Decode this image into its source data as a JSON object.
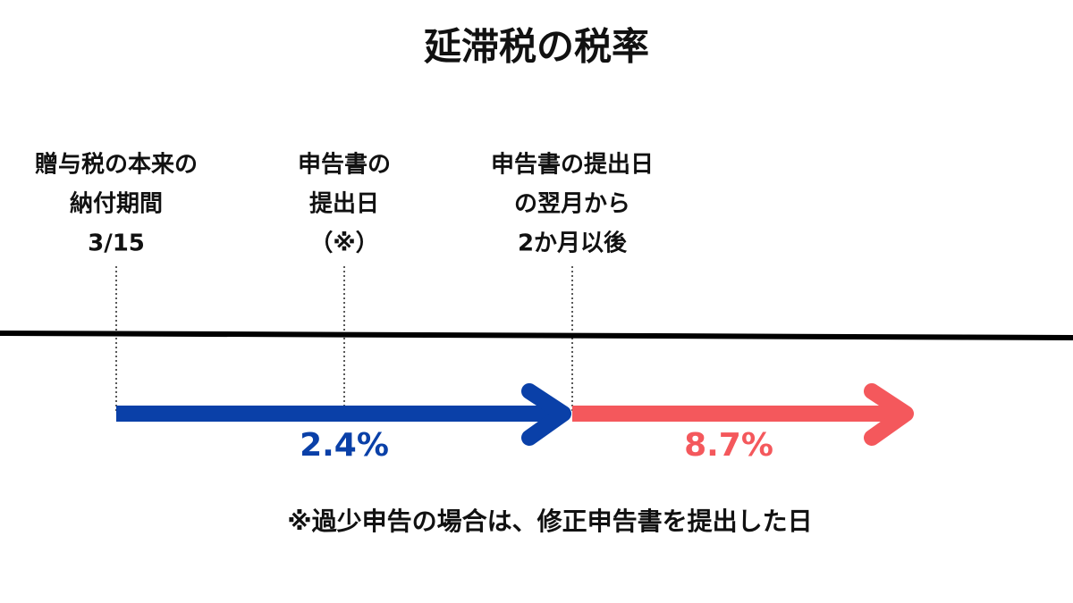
{
  "title": "延滞税の税率",
  "points": [
    {
      "lines": [
        "贈与税の本来の",
        "納付期間",
        "3/15"
      ]
    },
    {
      "lines": [
        "申告書の",
        "提出日",
        "（※）"
      ]
    },
    {
      "lines": [
        "申告書の提出日",
        "の翌月から",
        "2か月以後"
      ]
    }
  ],
  "periods": [
    {
      "rate": "2.4%"
    },
    {
      "rate": "8.7%"
    }
  ],
  "note": "※過少申告の場合は、修正申告書を提出した日"
}
